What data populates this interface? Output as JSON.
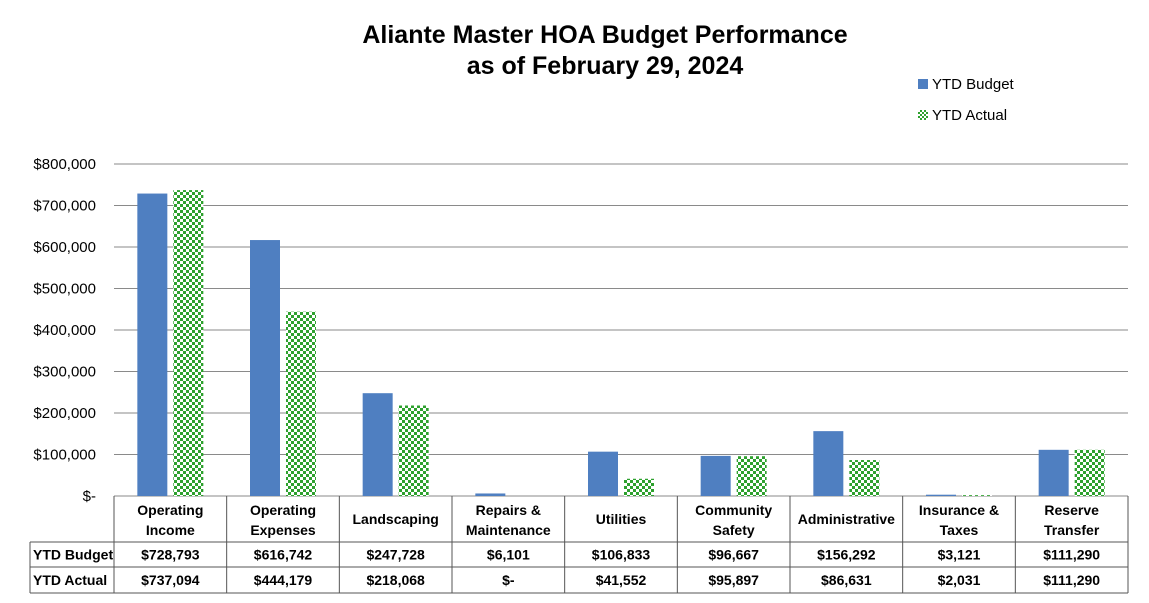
{
  "chart_data": {
    "type": "bar",
    "title": [
      "Aliante Master HOA Budget Performance",
      "as of February 29, 2024"
    ],
    "categories": [
      [
        "Operating",
        "Income"
      ],
      [
        "Operating",
        "Expenses"
      ],
      [
        "Landscaping"
      ],
      [
        "Repairs &",
        "Maintenance"
      ],
      [
        "Utilities"
      ],
      [
        "Community",
        "Safety"
      ],
      [
        "Administrative"
      ],
      [
        "Insurance &",
        "Taxes"
      ],
      [
        "Reserve",
        "Transfer"
      ]
    ],
    "series": [
      {
        "name": "YTD Budget",
        "values": [
          728793,
          616742,
          247728,
          6101,
          106833,
          96667,
          156292,
          3121,
          111290
        ],
        "labels": [
          "$728,793",
          "$616,742",
          "$247,728",
          "$6,101",
          "$106,833",
          "$96,667",
          "$156,292",
          "$3,121",
          "$111,290"
        ],
        "color": "#4f7fc1"
      },
      {
        "name": "YTD Actual",
        "values": [
          737094,
          444179,
          218068,
          0,
          41552,
          95897,
          86631,
          2031,
          111290
        ],
        "labels": [
          "$737,094",
          "$444,179",
          "$218,068",
          "$-",
          "$41,552",
          "$95,897",
          "$86,631",
          "$2,031",
          "$111,290"
        ],
        "color": "#2ea12e"
      }
    ],
    "yticks": [
      {
        "value": 800000,
        "label": "$800,000"
      },
      {
        "value": 700000,
        "label": "$700,000"
      },
      {
        "value": 600000,
        "label": "$600,000"
      },
      {
        "value": 500000,
        "label": "$500,000"
      },
      {
        "value": 400000,
        "label": "$400,000"
      },
      {
        "value": 300000,
        "label": "$300,000"
      },
      {
        "value": 200000,
        "label": "$200,000"
      },
      {
        "value": 100000,
        "label": "$100,000"
      },
      {
        "value": 0,
        "label": "$-"
      }
    ],
    "ylim": [
      0,
      800000
    ],
    "grid": true,
    "legend_position": "top-right",
    "xlabel": "",
    "ylabel": ""
  }
}
